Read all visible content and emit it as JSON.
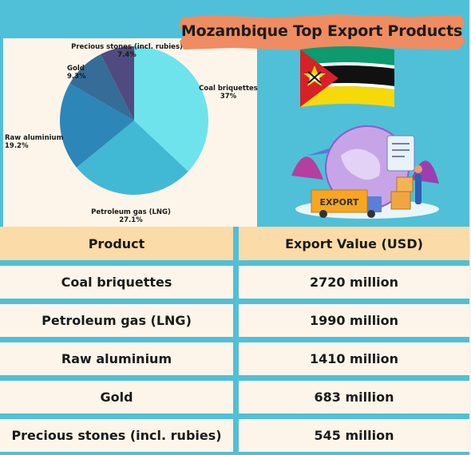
{
  "chart_data": [
    {
      "type": "pie",
      "slices": [
        {
          "label": "Coal briquettes",
          "value": 37,
          "value_label": "37%",
          "color": "#6ee3eb"
        },
        {
          "label": "Petroleum gas (LNG)",
          "value": 27.1,
          "value_label": "27.1%",
          "color": "#41b9d5"
        },
        {
          "label": "Raw aluminium",
          "value": 19.2,
          "value_label": "19.2%",
          "color": "#2d86b8"
        },
        {
          "label": "Gold",
          "value": 9.3,
          "value_label": "9.3%",
          "color": "#356c98"
        },
        {
          "label": "Precious stones (incl. rubies)",
          "value": 7.4,
          "value_label": "7.4%",
          "color": "#514a80"
        }
      ]
    },
    {
      "type": "table",
      "title": "Mozambique Top Export Products",
      "columns": [
        "Product",
        "Export Value (USD)"
      ],
      "rows": [
        [
          "Coal briquettes",
          "2720 million"
        ],
        [
          "Petroleum gas (LNG)",
          "1990 million"
        ],
        [
          "Raw aluminium",
          "1410 million"
        ],
        [
          "Gold",
          "683 million"
        ],
        [
          "Precious stones (incl. rubies)",
          "545 million"
        ]
      ]
    }
  ],
  "colors": {
    "background": "#4fc0d8",
    "panel": "#fdf5e9",
    "header_row": "#fbdba8",
    "banner": "#ef8c62"
  },
  "images": {
    "flag": "mozambique-flag-icon",
    "illustration": "export-globe-illustration"
  },
  "illustration_label": "EXPORT"
}
